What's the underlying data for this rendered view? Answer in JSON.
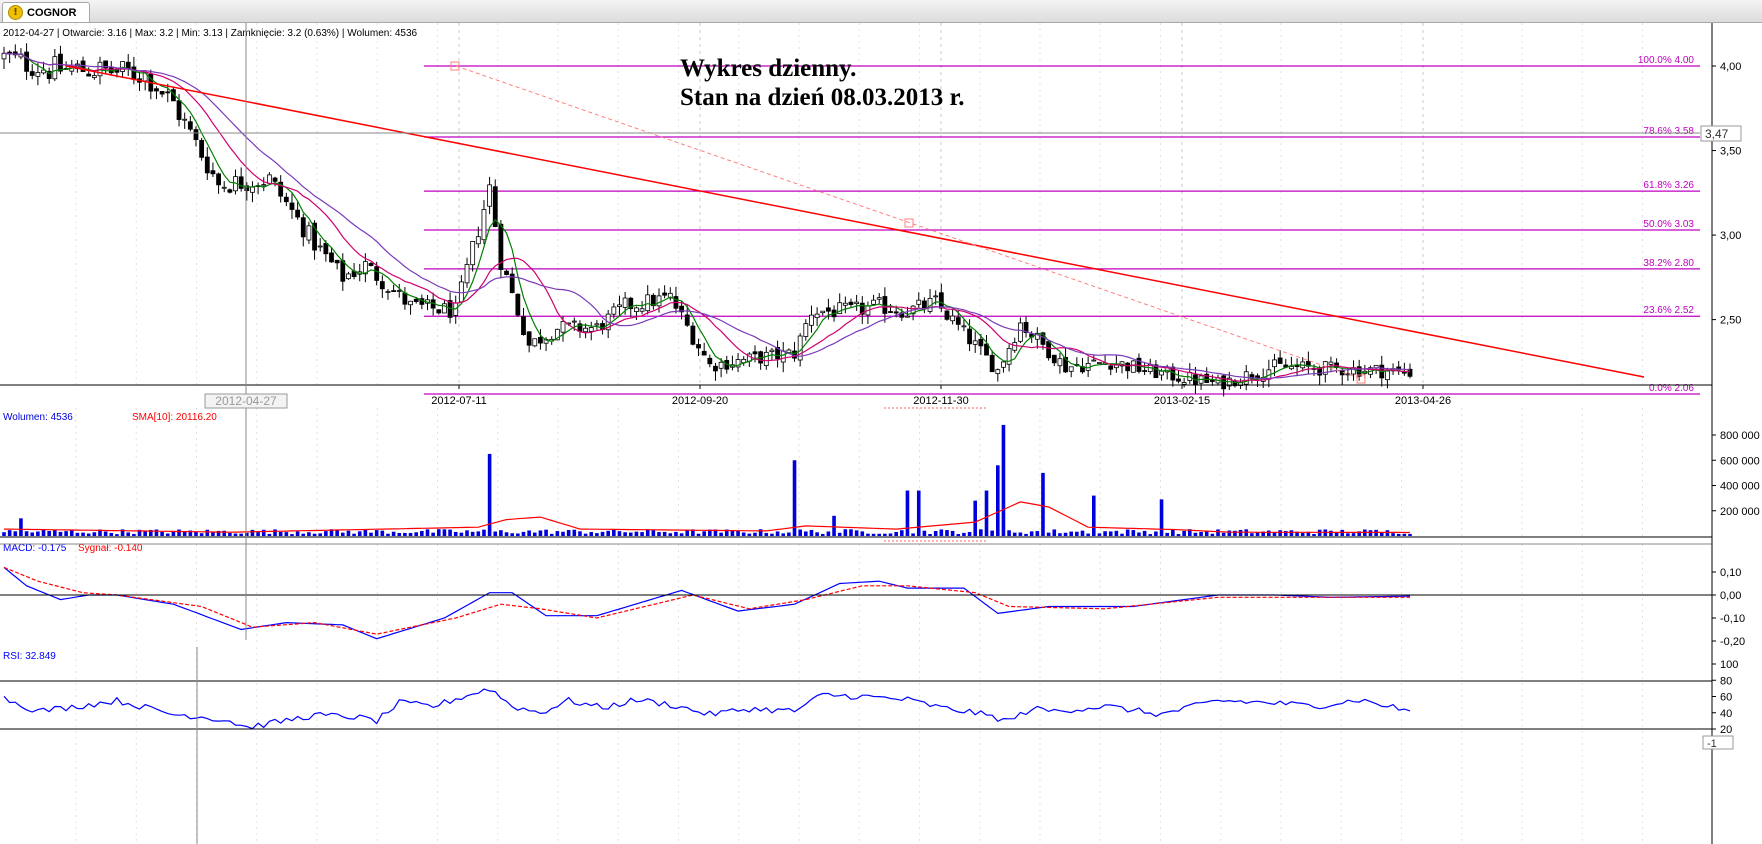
{
  "tab": {
    "label": "COGNOR",
    "icon": "warning-icon"
  },
  "colors": {
    "candle": "#000000",
    "ma_fast": "#008000",
    "ma_mid": "#d0006f",
    "ma_slow": "#7a3ab8",
    "fib": "#c000c0",
    "trendline": "#ff0000",
    "volume": "#0000dd",
    "volume_sma": "#ff0000",
    "macd": "#0000ff",
    "signal": "#ff0000",
    "rsi": "#0000ff",
    "axis": "#000000",
    "grid": "#c8c8c8"
  },
  "header_info": "2012-04-27 | Otwarcie: 3.16 | Max: 3.2 | Min: 3.13 | Zamknięcie: 3.2 (0.63%)  | Wolumen: 4536",
  "annotation": {
    "line1": "Wykres dzienny.",
    "line2": "Stan na dzień 08.03.2013 r."
  },
  "crosshair": {
    "x_label": "2012-04-27",
    "y_label": "3,47"
  },
  "chart_data": [
    {
      "type": "candlestick",
      "ylim": [
        2.06,
        4.15
      ],
      "yticks": [
        "4,00",
        "3,50",
        "3,00",
        "2,50"
      ],
      "xticks": [
        "2012-07-11",
        "2012-09-20",
        "2012-11-30",
        "2013-02-15",
        "2013-04-26"
      ],
      "overlays": [
        "moving-average-fast",
        "moving-average-mid",
        "moving-average-slow"
      ],
      "price_path": [
        [
          0,
          4.05
        ],
        [
          8,
          3.98
        ],
        [
          15,
          3.98
        ],
        [
          25,
          3.95
        ],
        [
          30,
          3.78
        ],
        [
          38,
          3.3
        ],
        [
          47,
          3.33
        ],
        [
          55,
          2.95
        ],
        [
          60,
          2.75
        ],
        [
          64,
          2.82
        ],
        [
          72,
          2.58
        ],
        [
          80,
          2.55
        ],
        [
          86,
          3.28
        ],
        [
          88,
          2.85
        ],
        [
          93,
          2.35
        ],
        [
          98,
          2.45
        ],
        [
          105,
          2.45
        ],
        [
          110,
          2.58
        ],
        [
          118,
          2.63
        ],
        [
          125,
          2.23
        ],
        [
          135,
          2.28
        ],
        [
          140,
          2.3
        ],
        [
          143,
          2.55
        ],
        [
          150,
          2.55
        ],
        [
          155,
          2.58
        ],
        [
          160,
          2.55
        ],
        [
          165,
          2.6
        ],
        [
          170,
          2.42
        ],
        [
          176,
          2.2
        ],
        [
          180,
          2.48
        ],
        [
          188,
          2.22
        ],
        [
          196,
          2.25
        ],
        [
          205,
          2.18
        ],
        [
          215,
          2.12
        ],
        [
          225,
          2.22
        ],
        [
          235,
          2.21
        ],
        [
          243,
          2.2
        ],
        [
          249,
          2.19
        ]
      ],
      "fibonacci": [
        {
          "label": "100.0% 4.00",
          "value": 4.0
        },
        {
          "label": "78.6% 3.58",
          "value": 3.58
        },
        {
          "label": "61.8% 3.26",
          "value": 3.26
        },
        {
          "label": "50.0% 3.03",
          "value": 3.03
        },
        {
          "label": "38.2% 2.80",
          "value": 2.8
        },
        {
          "label": "23.6% 2.52",
          "value": 2.52
        },
        {
          "label": "0.0% 2.06",
          "value": 2.06
        }
      ],
      "trendline": {
        "from": [
          "2012-04-27",
          4.0
        ],
        "to": [
          "2013-04-26",
          2.08
        ]
      }
    },
    {
      "type": "bar",
      "header": "Wolumen: 4536",
      "sma_label": "SMA[10]: 20116.20",
      "ylim": [
        0,
        900000
      ],
      "yticks": [
        "800 000",
        "600 000",
        "400 000",
        "200 000"
      ],
      "spikes": [
        [
          3,
          140000
        ],
        [
          86,
          650000
        ],
        [
          140,
          600000
        ],
        [
          147,
          160000
        ],
        [
          160,
          360000
        ],
        [
          162,
          360000
        ],
        [
          172,
          280000
        ],
        [
          174,
          360000
        ],
        [
          176,
          560000
        ],
        [
          177,
          880000
        ],
        [
          184,
          500000
        ],
        [
          193,
          320000
        ],
        [
          205,
          290000
        ]
      ],
      "sma_path": [
        [
          0,
          55000
        ],
        [
          40,
          30000
        ],
        [
          84,
          70000
        ],
        [
          89,
          130000
        ],
        [
          95,
          150000
        ],
        [
          102,
          55000
        ],
        [
          135,
          40000
        ],
        [
          142,
          80000
        ],
        [
          158,
          55000
        ],
        [
          172,
          110000
        ],
        [
          180,
          270000
        ],
        [
          185,
          230000
        ],
        [
          192,
          70000
        ],
        [
          208,
          50000
        ],
        [
          217,
          30000
        ],
        [
          249,
          28000
        ]
      ]
    },
    {
      "type": "line",
      "header_macd": "MACD: -0.175",
      "header_signal": "Sygnał: -0.140",
      "ylim": [
        -0.21,
        0.15
      ],
      "yticks": [
        "0,10",
        "0,00",
        "-0,10",
        "-0,20"
      ],
      "series": [
        {
          "name": "MACD",
          "points": [
            [
              0,
              0.12
            ],
            [
              4,
              0.04
            ],
            [
              10,
              -0.02
            ],
            [
              15,
              0.0
            ],
            [
              20,
              0.0
            ],
            [
              30,
              -0.04
            ],
            [
              42,
              -0.15
            ],
            [
              50,
              -0.12
            ],
            [
              60,
              -0.13
            ],
            [
              66,
              -0.19
            ],
            [
              78,
              -0.1
            ],
            [
              86,
              0.01
            ],
            [
              90,
              0.01
            ],
            [
              96,
              -0.09
            ],
            [
              105,
              -0.09
            ],
            [
              120,
              0.02
            ],
            [
              130,
              -0.07
            ],
            [
              140,
              -0.04
            ],
            [
              148,
              0.05
            ],
            [
              155,
              0.06
            ],
            [
              160,
              0.03
            ],
            [
              170,
              0.03
            ],
            [
              176,
              -0.08
            ],
            [
              185,
              -0.05
            ],
            [
              200,
              -0.05
            ],
            [
              215,
              0.0
            ],
            [
              225,
              0.0
            ],
            [
              235,
              -0.01
            ],
            [
              249,
              -0.005
            ]
          ]
        },
        {
          "name": "Sygnał",
          "points": [
            [
              0,
              0.12
            ],
            [
              6,
              0.06
            ],
            [
              14,
              0.01
            ],
            [
              20,
              0.0
            ],
            [
              35,
              -0.05
            ],
            [
              44,
              -0.14
            ],
            [
              55,
              -0.12
            ],
            [
              66,
              -0.17
            ],
            [
              80,
              -0.1
            ],
            [
              88,
              -0.04
            ],
            [
              95,
              -0.06
            ],
            [
              105,
              -0.1
            ],
            [
              122,
              0.0
            ],
            [
              132,
              -0.06
            ],
            [
              142,
              -0.02
            ],
            [
              152,
              0.04
            ],
            [
              160,
              0.04
            ],
            [
              172,
              0.01
            ],
            [
              178,
              -0.05
            ],
            [
              195,
              -0.06
            ],
            [
              215,
              -0.01
            ],
            [
              235,
              -0.01
            ],
            [
              249,
              -0.01
            ]
          ]
        }
      ]
    },
    {
      "type": "line",
      "header": "RSI: 32.849",
      "ylim": [
        17,
        100
      ],
      "yticks": [
        "100",
        "80",
        "60",
        "40",
        "20"
      ],
      "bottom_label": "-1",
      "series": [
        {
          "name": "RSI",
          "points": [
            [
              0,
              58
            ],
            [
              6,
              42
            ],
            [
              12,
              47
            ],
            [
              20,
              55
            ],
            [
              30,
              38
            ],
            [
              34,
              36
            ],
            [
              40,
              30
            ],
            [
              43,
              22
            ],
            [
              48,
              28
            ],
            [
              55,
              37
            ],
            [
              62,
              35
            ],
            [
              66,
              30
            ],
            [
              70,
              52
            ],
            [
              76,
              48
            ],
            [
              86,
              70
            ],
            [
              90,
              48
            ],
            [
              95,
              40
            ],
            [
              100,
              55
            ],
            [
              106,
              46
            ],
            [
              112,
              56
            ],
            [
              118,
              50
            ],
            [
              125,
              38
            ],
            [
              132,
              45
            ],
            [
              140,
              42
            ],
            [
              145,
              62
            ],
            [
              152,
              60
            ],
            [
              160,
              56
            ],
            [
              166,
              46
            ],
            [
              172,
              40
            ],
            [
              178,
              30
            ],
            [
              182,
              45
            ],
            [
              186,
              42
            ],
            [
              195,
              48
            ],
            [
              205,
              38
            ],
            [
              215,
              55
            ],
            [
              225,
              52
            ],
            [
              232,
              48
            ],
            [
              240,
              56
            ],
            [
              249,
              42
            ]
          ]
        }
      ]
    }
  ]
}
